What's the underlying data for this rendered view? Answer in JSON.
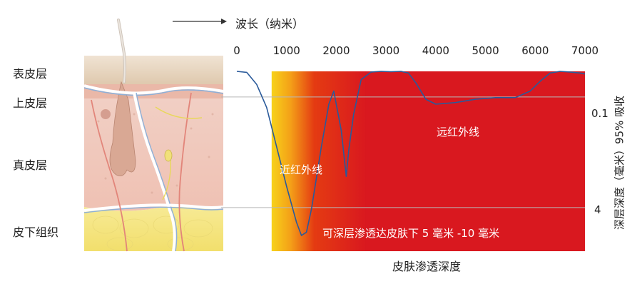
{
  "header": {
    "wavelength_title": "波长（纳米）"
  },
  "skin_layers": [
    "表皮层",
    "上皮层",
    "真皮层",
    "皮下组织"
  ],
  "chart_data": {
    "type": "line",
    "x_ticks": [
      "0",
      "1000",
      "2000",
      "3000",
      "4000",
      "5000",
      "6000",
      "7000"
    ],
    "xlim": [
      0,
      7000
    ],
    "depth_labels": [
      "0.1",
      "4"
    ],
    "xlabel": "皮肤渗透深度",
    "ylabel": "深层深度（毫米）95% 吸收",
    "annotations": {
      "near_ir": "近红外线",
      "far_ir": "远红外线",
      "penetration": "可深层渗透达皮肤下 5 毫米 -10 毫米"
    },
    "curve": {
      "name": "penetration-depth",
      "color": "#2a5a9a",
      "x": [
        0,
        200,
        400,
        600,
        800,
        1000,
        1200,
        1300,
        1400,
        1500,
        1700,
        1850,
        1950,
        2100,
        2200,
        2250,
        2350,
        2500,
        2700,
        2900,
        3100,
        3300,
        3450,
        3600,
        3800,
        4000,
        4400,
        4800,
        5200,
        5600,
        5900,
        6100,
        6300,
        6500,
        6700,
        6900,
        7000
      ],
      "y": [
        0,
        0.03,
        0.4,
        1.1,
        2.3,
        3.5,
        4.6,
        5.0,
        4.9,
        4.2,
        2.3,
        1.0,
        0.6,
        1.8,
        3.2,
        2.4,
        1.3,
        0.25,
        0.02,
        0.0,
        0.01,
        0.0,
        0.05,
        0.35,
        0.85,
        1.0,
        0.95,
        0.85,
        0.8,
        0.8,
        0.6,
        0.3,
        0.05,
        0.0,
        0.02,
        0.05,
        0.08
      ]
    }
  },
  "colors": {
    "band_white": "#ffffff",
    "gradient_start": "#f7d21a",
    "gradient_mid": "#e43b12",
    "band_red": "#d9181f",
    "grid_line": "#b8b8b8",
    "epidermis": "#e9d6bf",
    "dermis": "#f2c7b8",
    "subcutaneous": "#f3e47f"
  },
  "icons": [
    "skin-cross-section-illustration",
    "hair-strand",
    "arrow-right-icon"
  ]
}
